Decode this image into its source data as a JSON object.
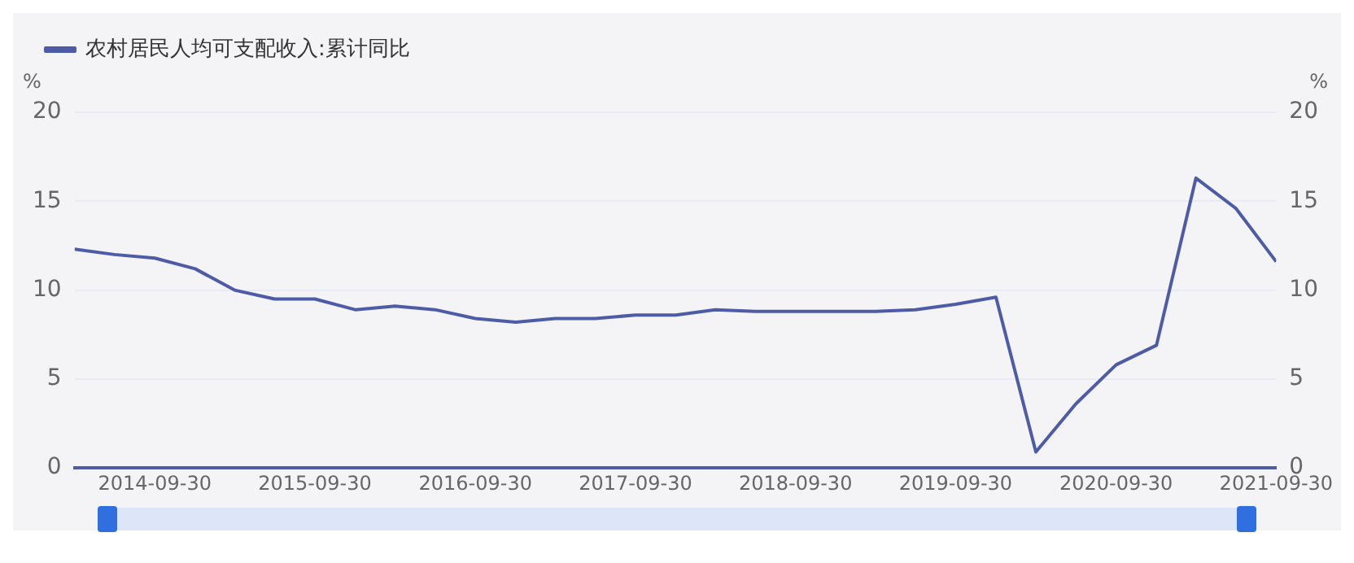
{
  "chart_data": {
    "type": "line",
    "ylabel": "%",
    "y2label": "%",
    "x": [
      "2014-03-31",
      "2014-06-30",
      "2014-09-30",
      "2014-12-31",
      "2015-03-31",
      "2015-06-30",
      "2015-09-30",
      "2015-12-31",
      "2016-03-31",
      "2016-06-30",
      "2016-09-30",
      "2016-12-31",
      "2017-03-31",
      "2017-06-30",
      "2017-09-30",
      "2017-12-31",
      "2018-03-31",
      "2018-06-30",
      "2018-09-30",
      "2018-12-31",
      "2019-03-31",
      "2019-06-30",
      "2019-09-30",
      "2019-12-31",
      "2020-03-31",
      "2020-06-30",
      "2020-09-30",
      "2020-12-31",
      "2021-03-31",
      "2021-06-30",
      "2021-09-30"
    ],
    "series": [
      {
        "name": "农村居民人均可支配收入:累计同比",
        "color": "#4e5ba6",
        "values": [
          12.3,
          12.0,
          11.8,
          11.2,
          10.0,
          9.5,
          9.5,
          8.9,
          9.1,
          8.9,
          8.4,
          8.2,
          8.4,
          8.4,
          8.6,
          8.6,
          8.9,
          8.8,
          8.8,
          8.8,
          8.8,
          8.9,
          9.2,
          9.6,
          0.9,
          3.6,
          5.8,
          6.9,
          16.3,
          14.6,
          11.6
        ]
      }
    ],
    "xlim": [
      "2014-03-31",
      "2021-09-30"
    ],
    "xticks": [
      "2014-09-30",
      "2015-09-30",
      "2016-09-30",
      "2017-09-30",
      "2018-09-30",
      "2019-09-30",
      "2020-09-30",
      "2021-09-30"
    ],
    "ylim": [
      0,
      20
    ],
    "yticks": [
      0,
      5,
      10,
      15,
      20
    ],
    "y2lim": [
      0,
      20
    ],
    "y2ticks": [
      0,
      5,
      10,
      15,
      20
    ],
    "grid": "y",
    "legend": "top left",
    "marker": "none",
    "line_style": "solid"
  }
}
